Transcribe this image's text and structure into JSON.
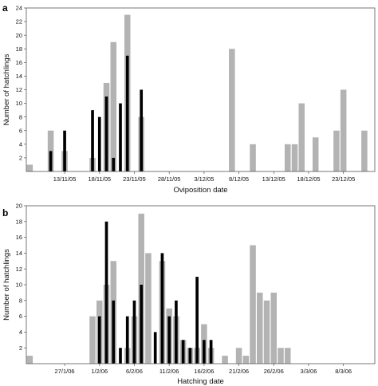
{
  "chart_data": [
    {
      "panel": "a",
      "type": "bar",
      "xlabel": "Oviposition date",
      "ylabel": "Number of hatchlings",
      "ylim": [
        0,
        24
      ],
      "yticks": [
        2,
        4,
        6,
        8,
        10,
        12,
        14,
        16,
        18,
        20,
        22,
        24
      ],
      "xlim": [
        "2005-11-08",
        "2005-12-27"
      ],
      "xticks": [
        "13/11/05",
        "18/11/05",
        "23/11/05",
        "28/11/05",
        "3/12/05",
        "8/12/05",
        "13/12/05",
        "18/12/05",
        "23/12/05"
      ],
      "xtick_dates": [
        "2005-11-13",
        "2005-11-18",
        "2005-11-23",
        "2005-11-28",
        "2005-12-03",
        "2005-12-08",
        "2005-12-13",
        "2005-12-18",
        "2005-12-23"
      ],
      "series": [
        {
          "color": "#b3b3b3",
          "points": [
            [
              "2005-11-08",
              1
            ],
            [
              "2005-11-11",
              6
            ],
            [
              "2005-11-13",
              3
            ],
            [
              "2005-11-17",
              2
            ],
            [
              "2005-11-19",
              13
            ],
            [
              "2005-11-20",
              19
            ],
            [
              "2005-11-22",
              23
            ],
            [
              "2005-11-24",
              8
            ],
            [
              "2005-12-07",
              18
            ],
            [
              "2005-12-10",
              4
            ],
            [
              "2005-12-15",
              4
            ],
            [
              "2005-12-16",
              4
            ],
            [
              "2005-12-17",
              10
            ],
            [
              "2005-12-19",
              5
            ],
            [
              "2005-12-22",
              6
            ],
            [
              "2005-12-23",
              12
            ],
            [
              "2005-12-26",
              6
            ]
          ]
        },
        {
          "color": "#000000",
          "points": [
            [
              "2005-11-11",
              3
            ],
            [
              "2005-11-13",
              6
            ],
            [
              "2005-11-17",
              9
            ],
            [
              "2005-11-18",
              8
            ],
            [
              "2005-11-19",
              11
            ],
            [
              "2005-11-20",
              2
            ],
            [
              "2005-11-21",
              10
            ],
            [
              "2005-11-22",
              17
            ],
            [
              "2005-11-24",
              12
            ]
          ]
        }
      ]
    },
    {
      "panel": "b",
      "type": "bar",
      "xlabel": "Hatching date",
      "ylabel": "Number of hatchlings",
      "ylim": [
        0,
        20
      ],
      "yticks": [
        2,
        4,
        6,
        8,
        10,
        12,
        14,
        16,
        18,
        20
      ],
      "xlim": [
        "2006-01-22",
        "2006-03-12"
      ],
      "xticks": [
        "27/1/06",
        "1/2/06",
        "6/2/06",
        "11/2/06",
        "16/2/06",
        "21/2/06",
        "26/2/06",
        "3/3/06",
        "8/3/06"
      ],
      "xtick_dates": [
        "2006-01-27",
        "2006-02-01",
        "2006-02-06",
        "2006-02-11",
        "2006-02-16",
        "2006-02-21",
        "2006-02-26",
        "2006-03-03",
        "2006-03-08"
      ],
      "series": [
        {
          "color": "#b3b3b3",
          "points": [
            [
              "2006-01-22",
              1
            ],
            [
              "2006-01-31",
              6
            ],
            [
              "2006-02-01",
              8
            ],
            [
              "2006-02-02",
              10
            ],
            [
              "2006-02-03",
              13
            ],
            [
              "2006-02-05",
              2
            ],
            [
              "2006-02-06",
              6
            ],
            [
              "2006-02-07",
              19
            ],
            [
              "2006-02-08",
              14
            ],
            [
              "2006-02-10",
              13
            ],
            [
              "2006-02-11",
              7
            ],
            [
              "2006-02-12",
              6
            ],
            [
              "2006-02-13",
              3
            ],
            [
              "2006-02-14",
              2
            ],
            [
              "2006-02-15",
              2
            ],
            [
              "2006-02-16",
              5
            ],
            [
              "2006-02-17",
              2
            ],
            [
              "2006-02-19",
              1
            ],
            [
              "2006-02-21",
              2
            ],
            [
              "2006-02-22",
              1
            ],
            [
              "2006-02-23",
              15
            ],
            [
              "2006-02-24",
              9
            ],
            [
              "2006-02-25",
              8
            ],
            [
              "2006-02-26",
              9
            ],
            [
              "2006-02-27",
              2
            ],
            [
              "2006-02-28",
              2
            ]
          ]
        },
        {
          "color": "#000000",
          "points": [
            [
              "2006-02-01",
              6
            ],
            [
              "2006-02-02",
              18
            ],
            [
              "2006-02-03",
              8
            ],
            [
              "2006-02-04",
              2
            ],
            [
              "2006-02-05",
              6
            ],
            [
              "2006-02-06",
              8
            ],
            [
              "2006-02-07",
              10
            ],
            [
              "2006-02-09",
              4
            ],
            [
              "2006-02-10",
              14
            ],
            [
              "2006-02-11",
              6
            ],
            [
              "2006-02-12",
              8
            ],
            [
              "2006-02-13",
              3
            ],
            [
              "2006-02-14",
              2
            ],
            [
              "2006-02-15",
              11
            ],
            [
              "2006-02-16",
              3
            ],
            [
              "2006-02-17",
              3
            ]
          ]
        }
      ]
    }
  ]
}
